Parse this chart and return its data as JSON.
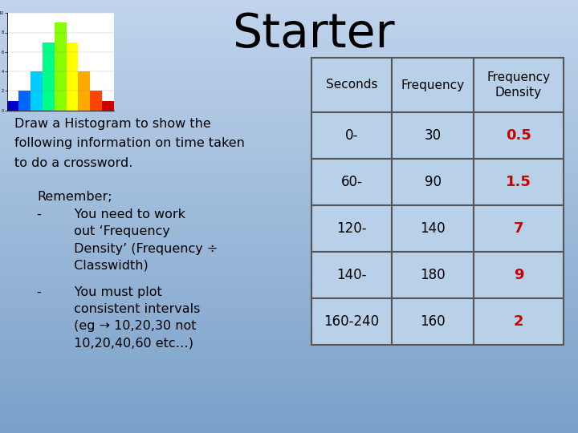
{
  "title": "Starter",
  "title_fontsize": 42,
  "text_left_lines": [
    "Draw a Histogram to show the",
    "following information on time taken",
    "to do a crossword."
  ],
  "remember_header": "Remember;",
  "bullet1_lines": [
    "-        You need to work",
    "         out ‘Frequency",
    "         Density’ (Frequency ÷",
    "         Classwidth)"
  ],
  "bullet2_lines": [
    "-        You must plot",
    "         consistent intervals",
    "         (eg → 10,20,30 not",
    "         10,20,40,60 etc…)"
  ],
  "table_headers": [
    "Seconds",
    "Frequency",
    "Frequency\nDensity"
  ],
  "table_data": [
    [
      "0-",
      "30",
      "0.5"
    ],
    [
      "60-",
      "90",
      "1.5"
    ],
    [
      "120-",
      "140",
      "7"
    ],
    [
      "140-",
      "180",
      "9"
    ],
    [
      "160-240",
      "160",
      "2"
    ]
  ],
  "table_fd_color": "#cc0000",
  "table_bg": "#b8d0e8",
  "table_border": "#555555",
  "font_family": "Comic Sans MS",
  "hist_bar_vals": [
    1,
    2,
    4,
    7,
    9,
    7,
    4,
    2,
    1
  ],
  "hist_bar_colors": [
    "#0000cc",
    "#0066ff",
    "#00ccff",
    "#00ff88",
    "#88ff00",
    "#ffff00",
    "#ffaa00",
    "#ff4400",
    "#cc0000"
  ]
}
